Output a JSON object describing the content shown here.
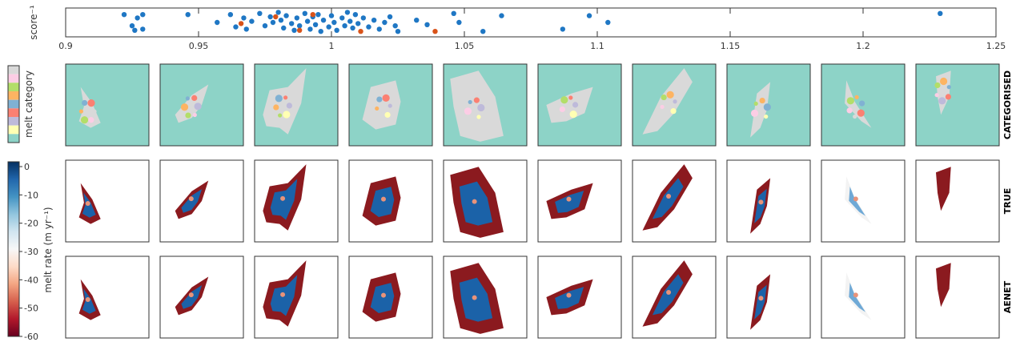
{
  "chart_data": [
    {
      "type": "scatter",
      "ylabel": "score⁻¹",
      "xlim": [
        0.9,
        1.25
      ],
      "x_ticks": [
        "0.9",
        "0.95",
        "1",
        "1.05",
        "1.1",
        "1.15",
        "1.2",
        "1.25"
      ],
      "x_tick_values": [
        0.9,
        0.95,
        1.0,
        1.05,
        1.1,
        1.15,
        1.2,
        1.25
      ],
      "series": [
        {
          "color": "#1f77c4",
          "points": [
            {
              "x": 0.922,
              "y": 0.85
            },
            {
              "x": 0.925,
              "y": 0.35
            },
            {
              "x": 0.927,
              "y": 0.7
            },
            {
              "x": 0.929,
              "y": 0.85
            },
            {
              "x": 0.926,
              "y": 0.15
            },
            {
              "x": 0.929,
              "y": 0.2
            },
            {
              "x": 0.946,
              "y": 0.85
            },
            {
              "x": 0.957,
              "y": 0.5
            },
            {
              "x": 0.962,
              "y": 0.85
            },
            {
              "x": 0.964,
              "y": 0.3
            },
            {
              "x": 0.967,
              "y": 0.7
            },
            {
              "x": 0.968,
              "y": 0.2
            },
            {
              "x": 0.97,
              "y": 0.55
            },
            {
              "x": 0.973,
              "y": 0.9
            },
            {
              "x": 0.975,
              "y": 0.35
            },
            {
              "x": 0.977,
              "y": 0.75
            },
            {
              "x": 0.978,
              "y": 0.5
            },
            {
              "x": 0.98,
              "y": 0.95
            },
            {
              "x": 0.981,
              "y": 0.6
            },
            {
              "x": 0.982,
              "y": 0.25
            },
            {
              "x": 0.983,
              "y": 0.8
            },
            {
              "x": 0.985,
              "y": 0.45
            },
            {
              "x": 0.986,
              "y": 0.15
            },
            {
              "x": 0.987,
              "y": 0.7
            },
            {
              "x": 0.988,
              "y": 0.35
            },
            {
              "x": 0.99,
              "y": 0.9
            },
            {
              "x": 0.991,
              "y": 0.55
            },
            {
              "x": 0.992,
              "y": 0.2
            },
            {
              "x": 0.993,
              "y": 0.75
            },
            {
              "x": 0.994,
              "y": 0.4
            },
            {
              "x": 0.995,
              "y": 0.85
            },
            {
              "x": 0.996,
              "y": 0.1
            },
            {
              "x": 0.997,
              "y": 0.6
            },
            {
              "x": 0.999,
              "y": 0.3
            },
            {
              "x": 1.0,
              "y": 0.8
            },
            {
              "x": 1.001,
              "y": 0.5
            },
            {
              "x": 1.002,
              "y": 0.15
            },
            {
              "x": 1.004,
              "y": 0.7
            },
            {
              "x": 1.005,
              "y": 0.35
            },
            {
              "x": 1.006,
              "y": 0.95
            },
            {
              "x": 1.007,
              "y": 0.55
            },
            {
              "x": 1.008,
              "y": 0.25
            },
            {
              "x": 1.009,
              "y": 0.85
            },
            {
              "x": 1.01,
              "y": 0.45
            },
            {
              "x": 1.012,
              "y": 0.7
            },
            {
              "x": 1.014,
              "y": 0.3
            },
            {
              "x": 1.016,
              "y": 0.6
            },
            {
              "x": 1.018,
              "y": 0.2
            },
            {
              "x": 1.02,
              "y": 0.5
            },
            {
              "x": 1.022,
              "y": 0.75
            },
            {
              "x": 1.024,
              "y": 0.35
            },
            {
              "x": 1.025,
              "y": 0.1
            },
            {
              "x": 1.032,
              "y": 0.6
            },
            {
              "x": 1.036,
              "y": 0.4
            },
            {
              "x": 1.046,
              "y": 0.9
            },
            {
              "x": 1.048,
              "y": 0.5
            },
            {
              "x": 1.057,
              "y": 0.1
            },
            {
              "x": 1.064,
              "y": 0.8
            },
            {
              "x": 1.087,
              "y": 0.2
            },
            {
              "x": 1.097,
              "y": 0.8
            },
            {
              "x": 1.104,
              "y": 0.5
            },
            {
              "x": 1.229,
              "y": 0.9
            }
          ]
        },
        {
          "color": "#d95319",
          "points": [
            {
              "x": 0.966,
              "y": 0.45
            },
            {
              "x": 0.979,
              "y": 0.75
            },
            {
              "x": 0.993,
              "y": 0.85
            },
            {
              "x": 0.988,
              "y": 0.15
            },
            {
              "x": 1.011,
              "y": 0.1
            },
            {
              "x": 1.039,
              "y": 0.1
            }
          ]
        }
      ]
    },
    {
      "type": "heatmap",
      "row_labels": [
        "CATEGORISED",
        "TRUE",
        "AENET"
      ],
      "category_colorbar": {
        "label": "melt category",
        "colors": [
          "#d9d9d9",
          "#fccde5",
          "#b3de69",
          "#fdb462",
          "#80b1d3",
          "#fb8072",
          "#bebada",
          "#ffffb3",
          "#8dd3c7"
        ]
      },
      "rate_colorbar": {
        "label": "melt rate (m yr⁻¹)",
        "ticks": [
          "0",
          "-10",
          "-20",
          "-30",
          "-40",
          "-50",
          "-60"
        ],
        "range": [
          -60,
          0
        ],
        "colors": [
          "#67001f",
          "#b2182b",
          "#d6604d",
          "#f4a582",
          "#fddbc7",
          "#f7f7f7",
          "#d1e5f0",
          "#92c5de",
          "#4393c3",
          "#2166ac",
          "#053061"
        ]
      },
      "panel_count": 10,
      "background_colors": {
        "categorised": "#8dd3c7",
        "rate": "#ffffff"
      }
    }
  ]
}
